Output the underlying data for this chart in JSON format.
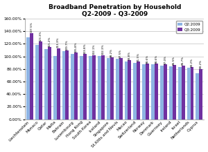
{
  "title": "Broadband Penetration by Household\nQ2-2009 - Q3-2009",
  "categories": [
    "Liechtenstein",
    "Monaco",
    "Qatar",
    "Malta",
    "Bahrain",
    "Luxembourg",
    "Hong Kong",
    "South Korea",
    "Iceland",
    "Singapore",
    "St.Kitts and Nevis",
    "Macao",
    "Switzerland",
    "Norway",
    "Denmark",
    "Guernsey",
    "Ireland",
    "Israel",
    "Netherlands",
    "Cyprus"
  ],
  "q2_values": [
    130.0,
    118.0,
    112.0,
    100.5,
    108.0,
    104.5,
    100.5,
    100.5,
    100.5,
    97.0,
    96.5,
    91.5,
    89.5,
    87.0,
    87.5,
    85.5,
    84.5,
    83.5,
    81.5,
    73.5
  ],
  "q3_values": [
    137.5,
    123.3,
    115.2,
    113.3,
    109.7,
    105.8,
    103.8,
    102.1,
    102.3,
    98.2,
    97.5,
    93.8,
    91.5,
    88.6,
    88.6,
    87.0,
    86.5,
    85.7,
    83.2,
    80.2
  ],
  "q2_color": "#8EB4E3",
  "q3_color": "#7030A0",
  "legend_labels": [
    "Q2:2009",
    "Q3:2009"
  ],
  "ylim": [
    0,
    160
  ],
  "ytick_interval": 20,
  "bar_width": 0.38,
  "title_fontsize": 6.5,
  "tick_fontsize": 4.2,
  "value_fontsize": 3.0,
  "background_color": "#FFFFFF",
  "plot_bg_color": "#FFFFFF",
  "grid_color": "#C0C0C0"
}
